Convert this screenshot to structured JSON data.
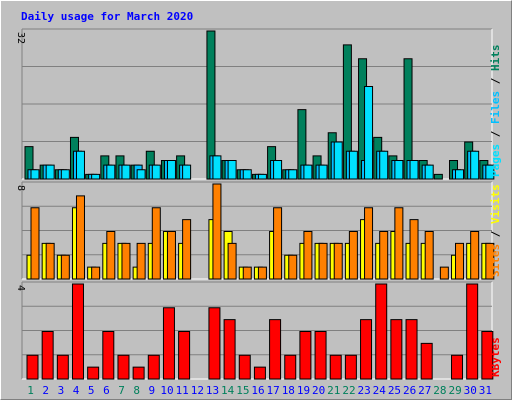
{
  "title": "Daily usage for March 2020",
  "colors": {
    "hits": "#00805c",
    "files": "#00c0ff",
    "pages": "#00e0ff",
    "visits": "#ffff00",
    "sites": "#ff8000",
    "kbytes": "#ff0000",
    "title": "#0000ff",
    "weekend": "#00805c",
    "weekday": "#0000ff"
  },
  "chart_data": [
    {
      "type": "bar",
      "categories": [
        "1",
        "2",
        "3",
        "4",
        "5",
        "6",
        "7",
        "8",
        "9",
        "10",
        "11",
        "12",
        "13",
        "14",
        "15",
        "16",
        "17",
        "18",
        "19",
        "20",
        "21",
        "22",
        "23",
        "24",
        "25",
        "26",
        "27",
        "28",
        "29",
        "30",
        "31"
      ],
      "weekend_days": [
        "1",
        "7",
        "8",
        "14",
        "15",
        "21",
        "22",
        "28",
        "29"
      ],
      "ymax_label": "32",
      "ylim": [
        0,
        32
      ],
      "axis_label_parts": [
        "Pages",
        "Files",
        "Hits"
      ],
      "separator": " / ",
      "series": [
        {
          "name": "Hits",
          "values": [
            7,
            3,
            2,
            9,
            1,
            5,
            5,
            3,
            6,
            4,
            5,
            0,
            32,
            4,
            2,
            1,
            7,
            2,
            15,
            5,
            10,
            29,
            26,
            9,
            5,
            26,
            4,
            1,
            4,
            8,
            4
          ]
        },
        {
          "name": "Files",
          "values": [
            2,
            3,
            2,
            6,
            1,
            3,
            3,
            3,
            3,
            4,
            3,
            0,
            5,
            4,
            2,
            1,
            4,
            2,
            3,
            3,
            8,
            6,
            4,
            6,
            4,
            4,
            3,
            0,
            2,
            6,
            3
          ]
        },
        {
          "name": "Pages",
          "values": [
            2,
            3,
            2,
            6,
            1,
            3,
            3,
            2,
            3,
            4,
            3,
            0,
            5,
            4,
            2,
            1,
            4,
            2,
            3,
            3,
            8,
            6,
            20,
            6,
            4,
            4,
            3,
            0,
            2,
            6,
            3
          ]
        }
      ]
    },
    {
      "type": "bar",
      "ymax_label": "8",
      "ylim": [
        0,
        8
      ],
      "axis_label_parts": [
        "Sites",
        "Visits"
      ],
      "separator": " / ",
      "series": [
        {
          "name": "Visits",
          "values": [
            2,
            3,
            2,
            6,
            1,
            3,
            3,
            1,
            3,
            4,
            3,
            0,
            5,
            4,
            1,
            1,
            4,
            2,
            3,
            3,
            3,
            3,
            5,
            3,
            4,
            3,
            3,
            0,
            2,
            3,
            3
          ]
        },
        {
          "name": "Sites",
          "values": [
            6,
            3,
            2,
            7,
            1,
            4,
            3,
            3,
            6,
            4,
            5,
            0,
            8,
            3,
            1,
            1,
            6,
            2,
            4,
            3,
            3,
            4,
            6,
            4,
            6,
            5,
            4,
            1,
            3,
            4,
            3
          ]
        }
      ]
    },
    {
      "type": "bar",
      "ymax_label": "4",
      "ylim": [
        0,
        4
      ],
      "axis_label": "KBytes",
      "series": [
        {
          "name": "KBytes",
          "values": [
            1,
            2,
            1,
            4,
            0.5,
            2,
            1,
            0.5,
            1,
            3,
            2,
            0,
            3,
            2.5,
            1,
            0.5,
            2.5,
            1,
            2,
            2,
            1,
            1,
            2.5,
            4,
            2.5,
            2.5,
            1.5,
            0,
            1,
            4,
            2
          ]
        }
      ]
    }
  ]
}
